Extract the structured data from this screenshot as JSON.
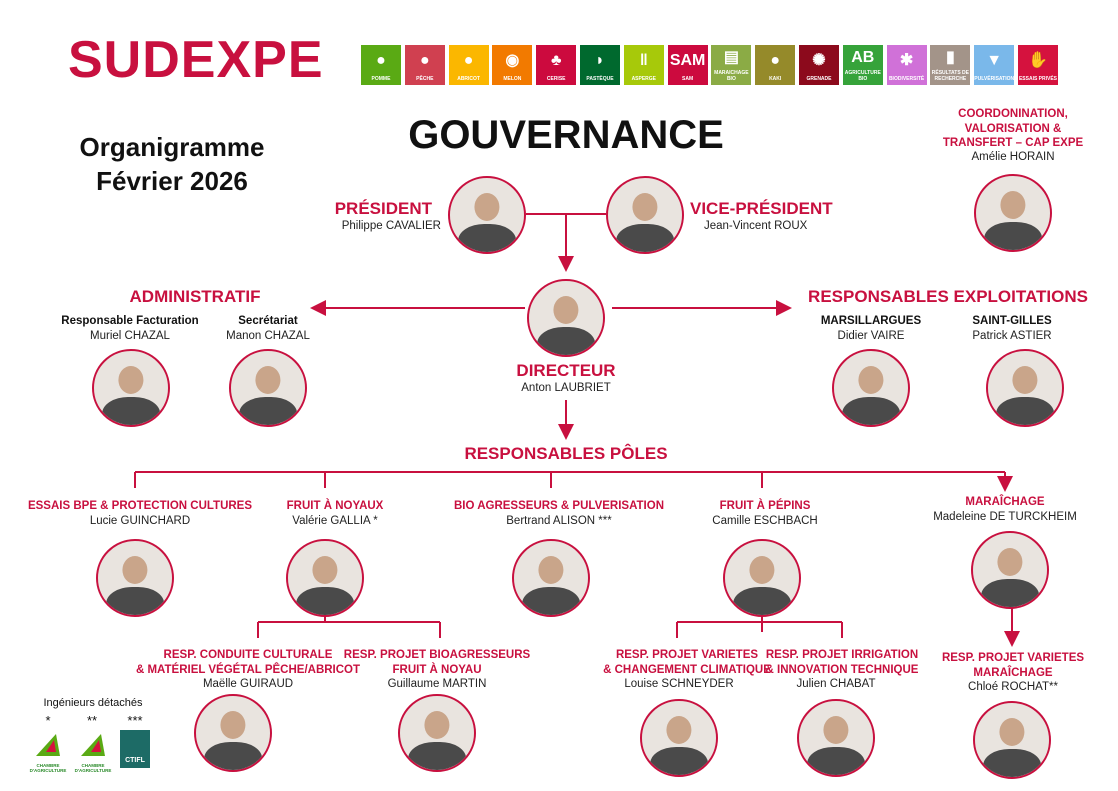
{
  "logo": {
    "text": "SUDEXPE"
  },
  "header": {
    "line1": "Organigramme",
    "line2": "Février 2026",
    "title": "GOUVERNANCE"
  },
  "tiles": [
    {
      "label": "POMME",
      "color": "#5aaa14",
      "icon": "apple-icon"
    },
    {
      "label": "PÊCHE",
      "color": "#d04050",
      "icon": "peach-icon"
    },
    {
      "label": "ABRICOT",
      "color": "#fbb700",
      "icon": "apricot-icon"
    },
    {
      "label": "MELON",
      "color": "#f27a00",
      "icon": "melon-icon"
    },
    {
      "label": "CERISE",
      "color": "#cc0a3e",
      "icon": "cherry-icon"
    },
    {
      "label": "PASTÈQUE",
      "color": "#00692e",
      "icon": "watermelon-icon"
    },
    {
      "label": "ASPERGE",
      "color": "#a7c90a",
      "icon": "asparagus-icon"
    },
    {
      "label": "SAM",
      "color": "#cc0a3e",
      "icon": "sam-icon"
    },
    {
      "label": "MARAICHAGE BIO",
      "color": "#8bab45",
      "icon": "vegetable-crate-icon"
    },
    {
      "label": "KAKI",
      "color": "#958a2a",
      "icon": "kaki-icon"
    },
    {
      "label": "GRENADE",
      "color": "#8c0a1c",
      "icon": "pomegranate-icon"
    },
    {
      "label": "AGRICULTURE BIO",
      "color": "#36a33a",
      "icon": "ab-icon"
    },
    {
      "label": "BIODIVERSITÉ",
      "color": "#d071d8",
      "icon": "bee-icon"
    },
    {
      "label": "RÉSULTATS DE RECHERCHE",
      "color": "#a39489",
      "icon": "bar-chart-icon"
    },
    {
      "label": "PULVÉRISATION",
      "color": "#7ab8ea",
      "icon": "spray-icon"
    },
    {
      "label": "ESSAIS PRIVÉS",
      "color": "#d5123e",
      "icon": "handshake-icon"
    }
  ],
  "accent": "#c8103f",
  "president": {
    "role": "PRÉSIDENT",
    "name": "Philippe CAVALIER"
  },
  "vice": {
    "role": "VICE-PRÉSIDENT",
    "name": "Jean-Vincent ROUX"
  },
  "coord": {
    "l1": "COORDONINATION,",
    "l2": "VALORISATION &",
    "l3": "TRANSFERT – CAP EXPE",
    "name": "Amélie HORAIN"
  },
  "admin": {
    "title": "ADMINISTRATIF",
    "p1": {
      "role": "Responsable Facturation",
      "name": "Muriel CHAZAL"
    },
    "p2": {
      "role": "Secrétariat",
      "name": "Manon CHAZAL"
    }
  },
  "exploit": {
    "title": "RESPONSABLES EXPLOITATIONS",
    "p1": {
      "role": "MARSILLARGUES",
      "name": "Didier VAIRE"
    },
    "p2": {
      "role": "SAINT-GILLES",
      "name": "Patrick ASTIER"
    }
  },
  "director": {
    "role": "DIRECTEUR",
    "name": "Anton LAUBRIET"
  },
  "poles": {
    "title": "RESPONSABLES PÔLES",
    "items": [
      {
        "role": "ESSAIS BPE & PROTECTION CULTURES",
        "name": "Lucie GUINCHARD"
      },
      {
        "role": "FRUIT À NOYAUX",
        "name": "Valérie GALLIA *"
      },
      {
        "role": "BIO AGRESSEURS & PULVERISATION",
        "name": "Bertrand ALISON  ***"
      },
      {
        "role": "FRUIT À PÉPINS",
        "name": "Camille ESCHBACH"
      },
      {
        "role": "MARAÎCHAGE",
        "name": "Madeleine DE TURCKHEIM"
      }
    ]
  },
  "subs": [
    {
      "l1": "RESP. CONDUITE CULTURALE",
      "l2": "& MATÉRIEL VÉGÉTAL PÊCHE/ABRICOT",
      "name": "Maëlle GUIRAUD"
    },
    {
      "l1": "RESP. PROJET BIOAGRESSEURS",
      "l2": "FRUIT À NOYAU",
      "name": "Guillaume MARTIN"
    },
    {
      "l1": "RESP. PROJET VARIETES",
      "l2": "& CHANGEMENT CLIMATIQUE",
      "name": "Louise SCHNEYDER"
    },
    {
      "l1": "RESP. PROJET IRRIGATION",
      "l2": "& INNOVATION TECHNIQUE",
      "name": "Julien CHABAT"
    },
    {
      "l1": "RESP. PROJET VARIETES",
      "l2": "MARAÎCHAGE",
      "name": "Chloé ROCHAT**"
    }
  ],
  "engineers": {
    "title": "Ingénieurs détachés",
    "marks": [
      "*",
      "**",
      "***"
    ],
    "logos": [
      "CHAMBRE D'AGRICULTURE",
      "CHAMBRE D'AGRICULTURE",
      "CTIFL"
    ]
  }
}
